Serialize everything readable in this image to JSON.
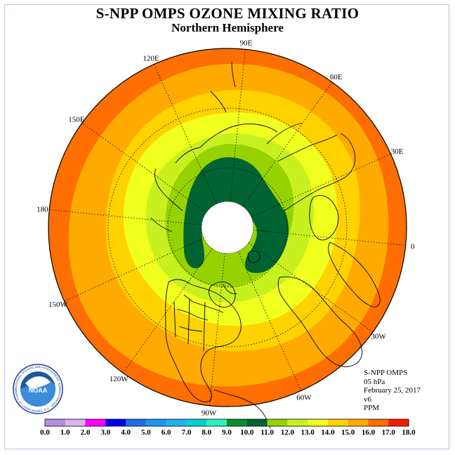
{
  "title": "S-NPP OMPS OZONE MIXING RATIO",
  "subtitle": "Northern Hemisphere",
  "longitude_labels": [
    {
      "text": "90E",
      "lon": 90
    },
    {
      "text": "60E",
      "lon": 60
    },
    {
      "text": "30E",
      "lon": 30
    },
    {
      "text": "0",
      "lon": 0
    },
    {
      "text": "30W",
      "lon": -30
    },
    {
      "text": "60W",
      "lon": -60
    },
    {
      "text": "90W",
      "lon": -90
    },
    {
      "text": "120W",
      "lon": -120
    },
    {
      "text": "150W",
      "lon": -150
    },
    {
      "text": "180",
      "lon": 180
    },
    {
      "text": "150E",
      "lon": 150
    },
    {
      "text": "120E",
      "lon": 120
    }
  ],
  "info": {
    "instrument": "S-NPP OMPS",
    "level": "05 hPa",
    "date": "February 25, 2017",
    "version": "v6",
    "units": "PPM"
  },
  "colorbar": {
    "labels": [
      "0.0",
      "1.0",
      "2.0",
      "3.0",
      "4.0",
      "5.0",
      "6.0",
      "7.0",
      "8.0",
      "9.0",
      "10.0",
      "11.0",
      "12.0",
      "13.0",
      "14.0",
      "15.0",
      "16.0",
      "17.0",
      "18.0"
    ],
    "colors": [
      "#b58ce8",
      "#dcb3f0",
      "#ff00ff",
      "#0000e6",
      "#1e6ee6",
      "#1e96f0",
      "#1eb4f0",
      "#00d2d2",
      "#2ff0be",
      "#0a8c32",
      "#006432",
      "#96d200",
      "#c8f01e",
      "#f0ff1e",
      "#ffd200",
      "#ffaa00",
      "#ff6e00",
      "#f01e00",
      "#8c5a3c"
    ]
  },
  "map_colors": {
    "ring_red_orange": "#ff6e00",
    "ring_orange": "#ffaa00",
    "ring_amber": "#ffd200",
    "ring_yellow": "#f0ff1e",
    "ring_light_green": "#c8f01e",
    "ring_green": "#96d200",
    "ring_dark_green": "#006432",
    "polar_night": "#ffffff"
  },
  "logo": {
    "text": "NOAA",
    "ring_text": "NATIONAL OCEANIC AND ATMOSPHERIC ADMINISTRATION · U.S. DEPARTMENT OF COMMERCE"
  }
}
